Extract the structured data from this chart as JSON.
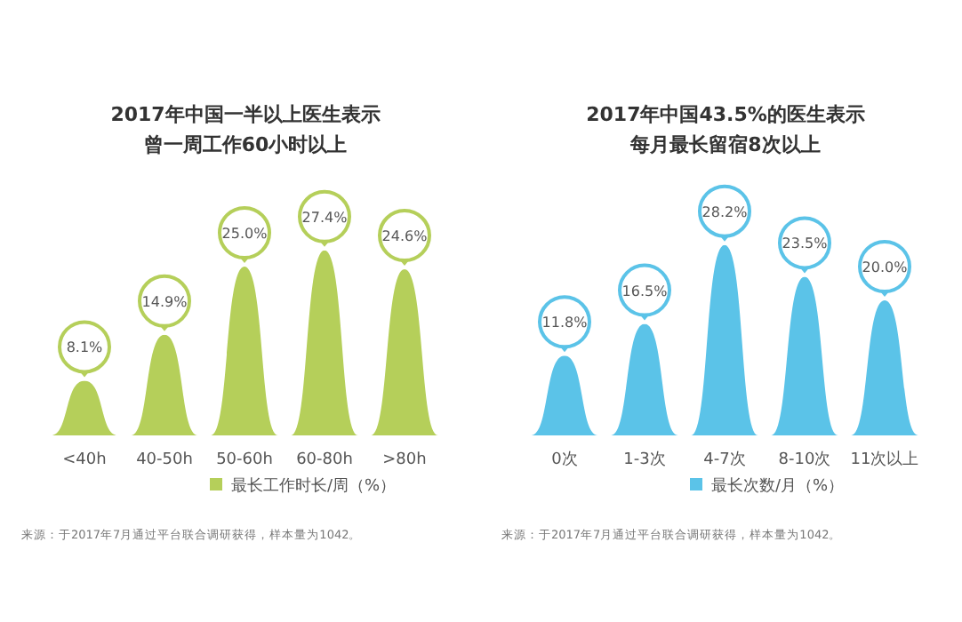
{
  "chart_data": [
    {
      "type": "bar",
      "title": "2017年中国一半以上医生表示曾一周工作60小时以上",
      "categories": [
        "<40h",
        "40-50h",
        "50-60h",
        "60-80h",
        ">80h"
      ],
      "series": [
        {
          "name": "最长工作时长/周（%）",
          "color": "#b5cf5a",
          "values": [
            8.1,
            14.9,
            25.0,
            27.4,
            24.6
          ],
          "value_labels": [
            "8.1%",
            "14.9%",
            "25.0%",
            "27.4%",
            "24.6%"
          ]
        }
      ],
      "legend": "bottom",
      "annotations": [
        "来源：于2017年7月通过平台联合调研获得，样本量为1042。"
      ]
    },
    {
      "type": "bar",
      "title": "2017年中国43.5%的医生表示每月最长留宿8次以上",
      "categories": [
        "0次",
        "1-3次",
        "4-7次",
        "8-10次",
        "11次以上"
      ],
      "series": [
        {
          "name": "最长次数/月（%）",
          "color": "#5bc3e8",
          "values": [
            11.8,
            16.5,
            28.2,
            23.5,
            20.0
          ],
          "value_labels": [
            "11.8%",
            "16.5%",
            "28.2%",
            "23.5%",
            "20.0%"
          ]
        }
      ],
      "legend": "bottom",
      "annotations": [
        "来源：于2017年7月通过平台联合调研获得，样本量为1042。"
      ]
    }
  ]
}
